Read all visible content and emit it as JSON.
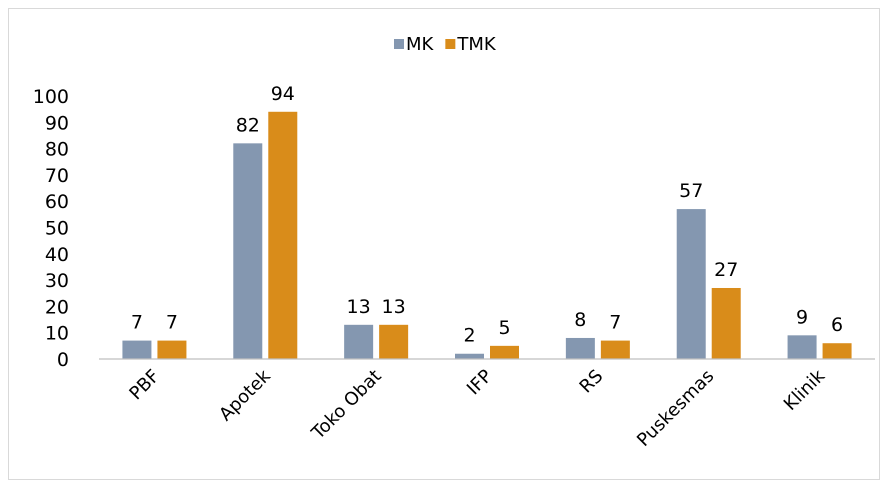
{
  "chart_data": {
    "type": "bar",
    "title": "",
    "xlabel": "",
    "ylabel": "",
    "categories": [
      "PBF",
      "Apotek",
      "Toko Obat",
      "IFP",
      "RS",
      "Puskesmas",
      "Klinik"
    ],
    "series": [
      {
        "name": "MK",
        "color": "#8497b0",
        "values": [
          7,
          82,
          13,
          2,
          8,
          57,
          9
        ]
      },
      {
        "name": "TMK",
        "color": "#d98c1a",
        "values": [
          7,
          94,
          13,
          5,
          7,
          27,
          6
        ]
      }
    ],
    "ylim": [
      0,
      100
    ],
    "yticks": [
      0,
      10,
      20,
      30,
      40,
      50,
      60,
      70,
      80,
      90,
      100
    ],
    "grid": false,
    "legend_position": "top",
    "data_labels": true,
    "x_tick_rotation": "diagonal"
  }
}
